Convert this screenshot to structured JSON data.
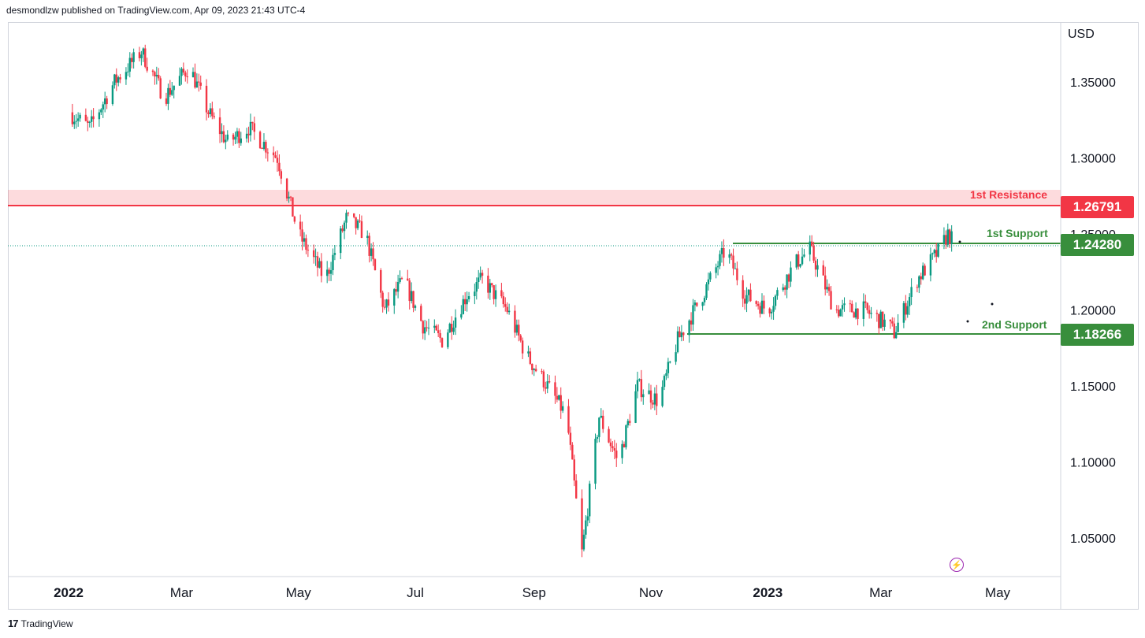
{
  "header": {
    "text": "desmondlzw published on TradingView.com, Apr 09, 2023 21:43 UTC-4"
  },
  "footer": {
    "logo_glyph": "17",
    "brand": "TradingView"
  },
  "chart_data": {
    "type": "candlestick",
    "currency": "USD",
    "y_ticks": [
      "1.35000",
      "1.30000",
      "1.25000",
      "1.20000",
      "1.15000",
      "1.10000",
      "1.05000"
    ],
    "x_ticks": [
      "2022",
      "Mar",
      "May",
      "Jul",
      "Sep",
      "Nov",
      "2023",
      "Mar",
      "May"
    ],
    "ylim": [
      1.03,
      1.38
    ],
    "levels": {
      "resistance_1": {
        "label": "1st Resistance",
        "value": "1.26791",
        "color": "#f23645"
      },
      "support_1": {
        "label": "1st Support",
        "value": "1.24280",
        "color": "#388e3c"
      },
      "support_2": {
        "label": "2nd Support",
        "value": "1.18266",
        "color": "#388e3c"
      }
    },
    "price_path": [
      [
        "2022-01-01",
        1.33
      ],
      [
        "2022-01-12",
        1.32
      ],
      [
        "2022-01-25",
        1.35
      ],
      [
        "2022-02-08",
        1.37
      ],
      [
        "2022-02-20",
        1.34
      ],
      [
        "2022-03-05",
        1.36
      ],
      [
        "2022-03-15",
        1.33
      ],
      [
        "2022-03-25",
        1.31
      ],
      [
        "2022-04-05",
        1.32
      ],
      [
        "2022-04-20",
        1.3
      ],
      [
        "2022-05-01",
        1.25
      ],
      [
        "2022-05-15",
        1.22
      ],
      [
        "2022-05-26",
        1.26
      ],
      [
        "2022-06-05",
        1.25
      ],
      [
        "2022-06-15",
        1.2
      ],
      [
        "2022-06-25",
        1.22
      ],
      [
        "2022-07-05",
        1.19
      ],
      [
        "2022-07-15",
        1.18
      ],
      [
        "2022-07-28",
        1.21
      ],
      [
        "2022-08-05",
        1.22
      ],
      [
        "2022-08-18",
        1.2
      ],
      [
        "2022-08-28",
        1.17
      ],
      [
        "2022-09-08",
        1.15
      ],
      [
        "2022-09-18",
        1.13
      ],
      [
        "2022-09-26",
        1.04
      ],
      [
        "2022-10-05",
        1.13
      ],
      [
        "2022-10-15",
        1.1
      ],
      [
        "2022-10-25",
        1.15
      ],
      [
        "2022-11-05",
        1.14
      ],
      [
        "2022-11-15",
        1.18
      ],
      [
        "2022-11-28",
        1.21
      ],
      [
        "2022-12-10",
        1.24
      ],
      [
        "2022-12-20",
        1.21
      ],
      [
        "2023-01-01",
        1.2
      ],
      [
        "2023-01-15",
        1.23
      ],
      [
        "2023-01-23",
        1.24
      ],
      [
        "2023-02-05",
        1.2
      ],
      [
        "2023-02-20",
        1.2
      ],
      [
        "2023-03-05",
        1.19
      ],
      [
        "2023-03-08",
        1.185
      ],
      [
        "2023-03-20",
        1.22
      ],
      [
        "2023-04-01",
        1.24
      ],
      [
        "2023-04-05",
        1.25
      ],
      [
        "2023-04-09",
        1.243
      ]
    ],
    "colors": {
      "up": "#089981",
      "down": "#f23645",
      "support": "#388e3c",
      "resistance": "#f23645"
    }
  }
}
